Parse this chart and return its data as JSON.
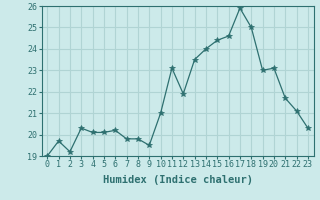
{
  "x": [
    0,
    1,
    2,
    3,
    4,
    5,
    6,
    7,
    8,
    9,
    10,
    11,
    12,
    13,
    14,
    15,
    16,
    17,
    18,
    19,
    20,
    21,
    22,
    23
  ],
  "y": [
    19.0,
    19.7,
    19.2,
    20.3,
    20.1,
    20.1,
    20.2,
    19.8,
    19.8,
    19.5,
    21.0,
    23.1,
    21.9,
    23.5,
    24.0,
    24.4,
    24.6,
    25.9,
    25.0,
    23.0,
    23.1,
    21.7,
    21.1,
    20.3
  ],
  "line_color": "#2e7070",
  "marker": "*",
  "marker_size": 4,
  "bg_color": "#cceaea",
  "grid_color": "#b0d4d4",
  "xlabel": "Humidex (Indice chaleur)",
  "xlim": [
    -0.5,
    23.5
  ],
  "ylim": [
    19,
    26
  ],
  "yticks": [
    19,
    20,
    21,
    22,
    23,
    24,
    25,
    26
  ],
  "xticks": [
    0,
    1,
    2,
    3,
    4,
    5,
    6,
    7,
    8,
    9,
    10,
    11,
    12,
    13,
    14,
    15,
    16,
    17,
    18,
    19,
    20,
    21,
    22,
    23
  ],
  "tick_color": "#2e7070",
  "label_fontsize": 7.5,
  "tick_fontsize": 6
}
